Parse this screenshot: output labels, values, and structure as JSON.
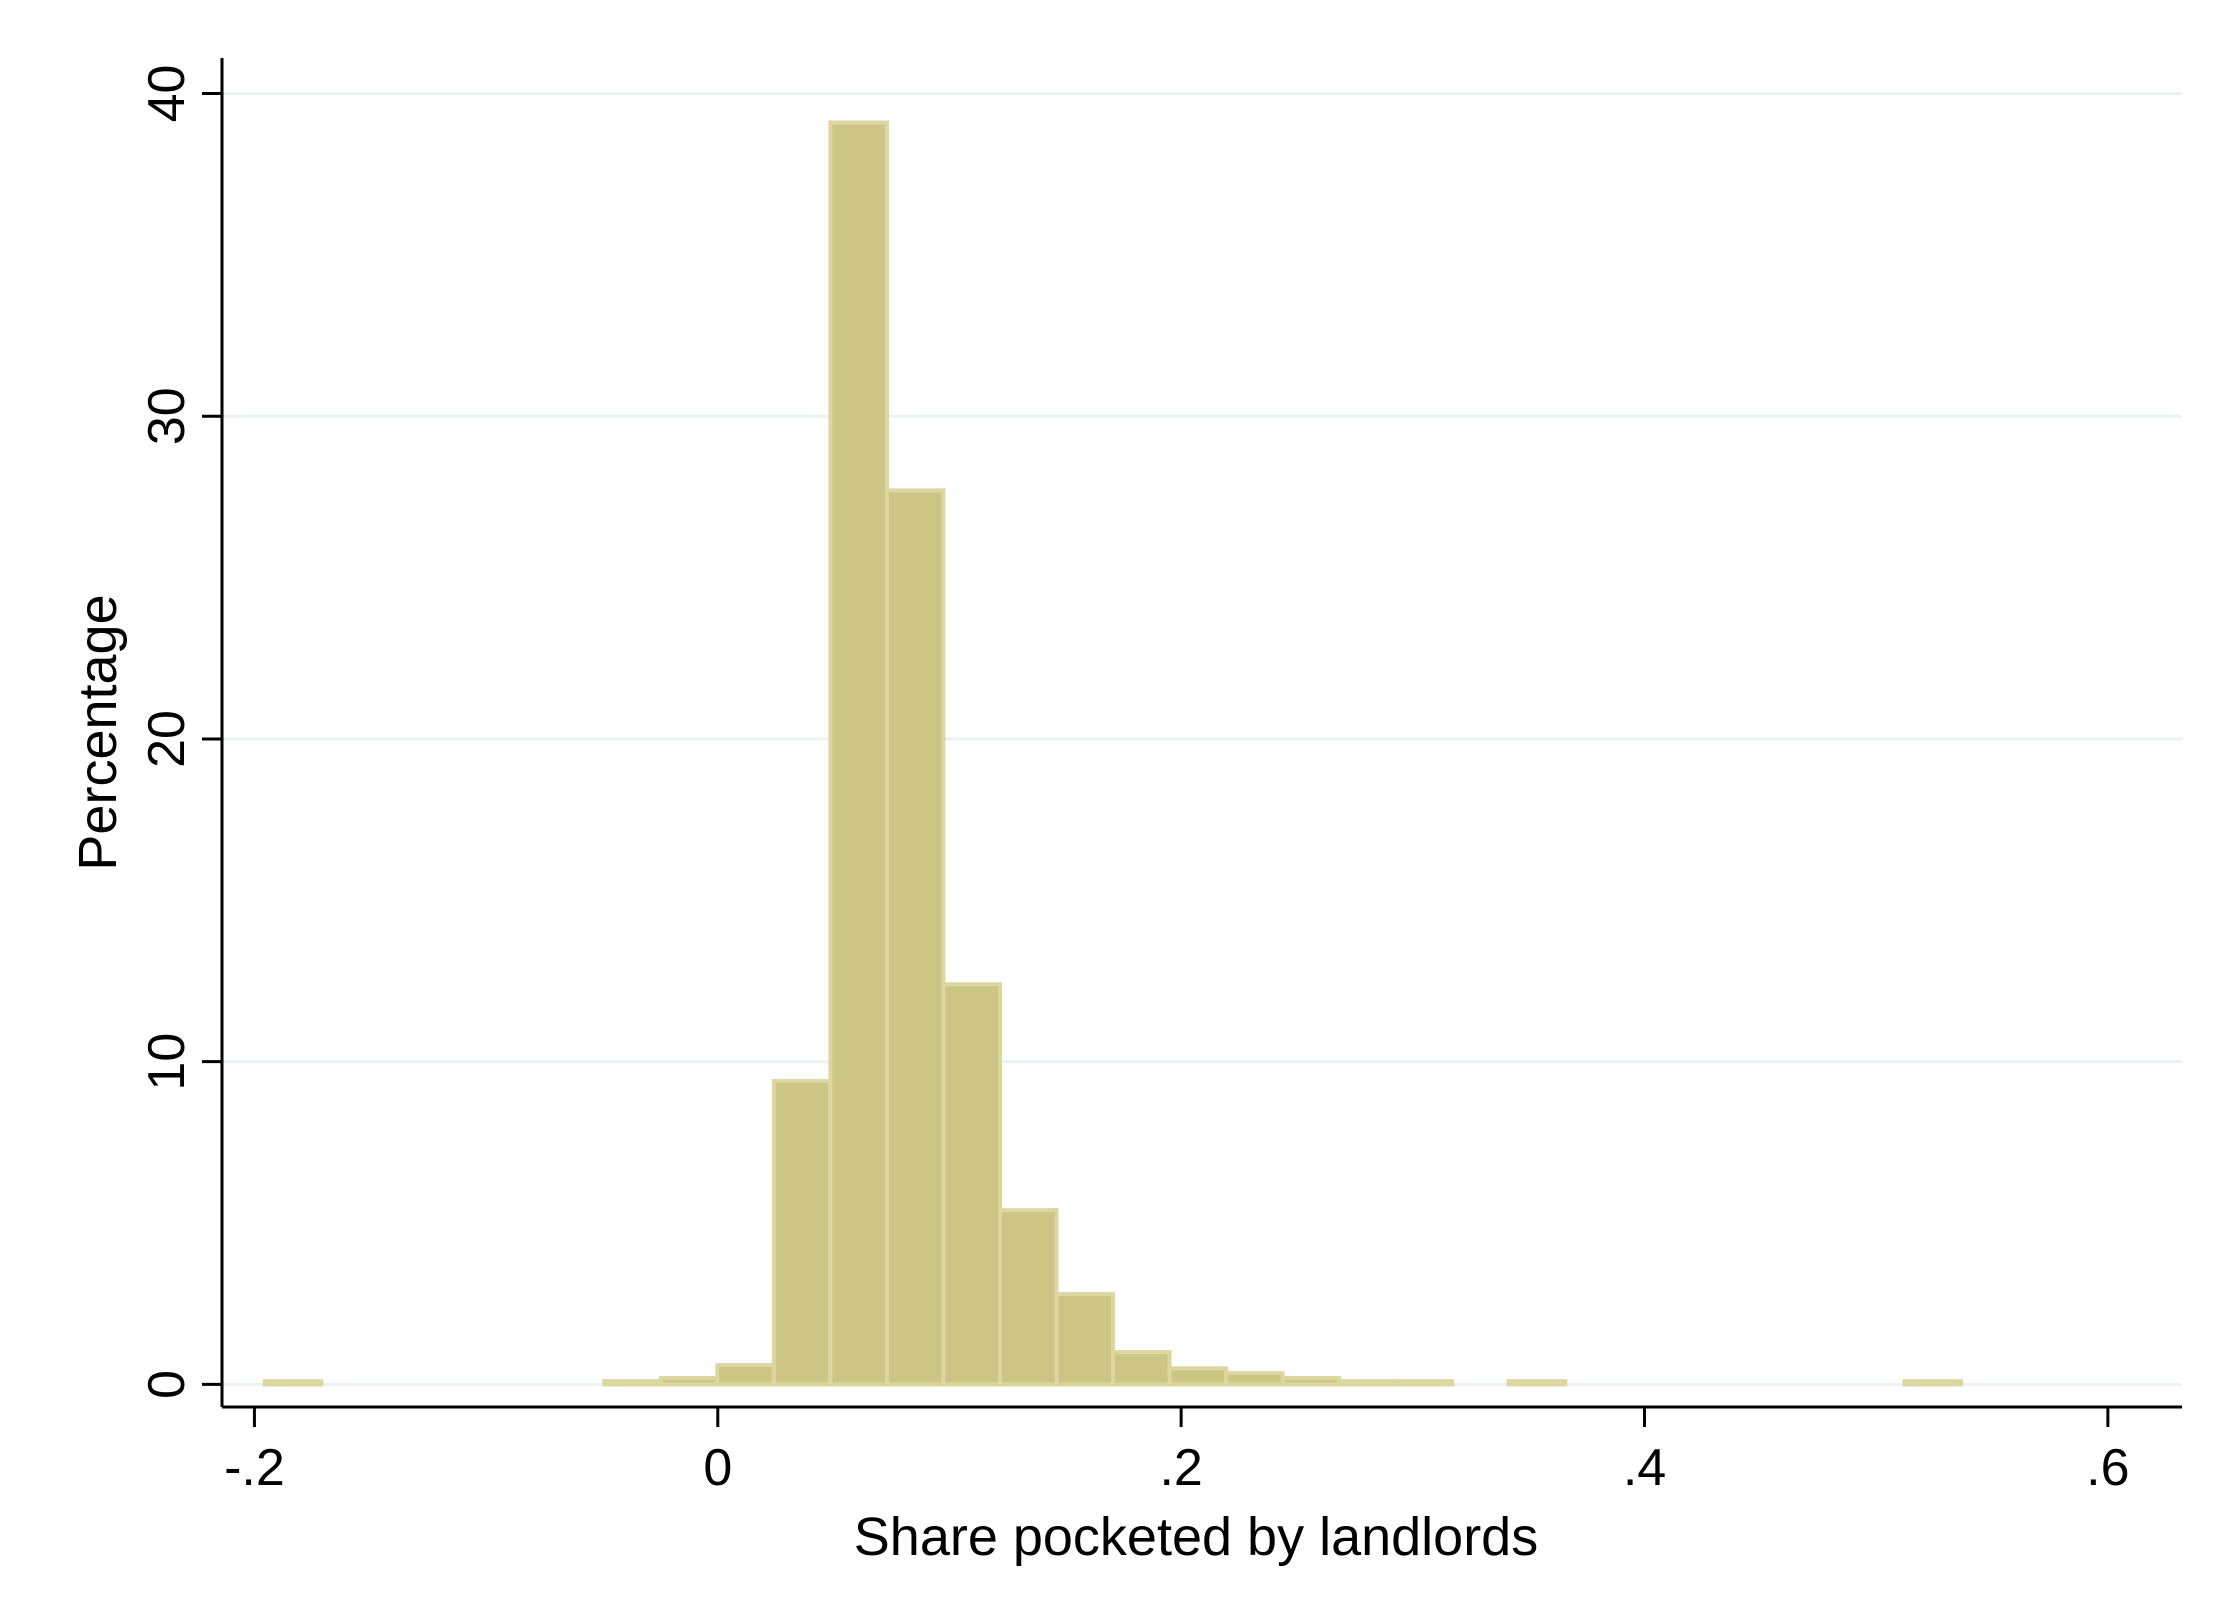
{
  "chart_data": {
    "type": "bar",
    "xlabel": "Share pocketed by landlords",
    "ylabel": "Percentage",
    "xlim": [
      -0.214,
      0.632
    ],
    "ylim": [
      -0.7,
      41.1
    ],
    "xticks": [
      -0.2,
      0,
      0.2,
      0.4,
      0.6
    ],
    "xtick_labels": [
      "-.2",
      "0",
      ".2",
      ".4",
      ".6"
    ],
    "yticks": [
      0,
      10,
      20,
      30,
      40
    ],
    "ytick_labels": [
      "0",
      "10",
      "20",
      "30",
      "40"
    ],
    "grid": true,
    "legend": "none",
    "bin_width": 0.0244,
    "bins": [
      {
        "x0": -0.1955,
        "x1": -0.1711,
        "value": 0.1
      },
      {
        "x0": -0.049,
        "x1": -0.0246,
        "value": 0.1
      },
      {
        "x0": -0.0246,
        "x1": -0.0002,
        "value": 0.2
      },
      {
        "x0": -0.0002,
        "x1": 0.0242,
        "value": 0.6
      },
      {
        "x0": 0.0242,
        "x1": 0.0486,
        "value": 9.4
      },
      {
        "x0": 0.0486,
        "x1": 0.073,
        "value": 39.1
      },
      {
        "x0": 0.073,
        "x1": 0.0974,
        "value": 27.7
      },
      {
        "x0": 0.0974,
        "x1": 0.1218,
        "value": 12.4
      },
      {
        "x0": 0.1218,
        "x1": 0.1462,
        "value": 5.4
      },
      {
        "x0": 0.1462,
        "x1": 0.1706,
        "value": 2.8
      },
      {
        "x0": 0.1706,
        "x1": 0.195,
        "value": 1.0
      },
      {
        "x0": 0.195,
        "x1": 0.2194,
        "value": 0.5
      },
      {
        "x0": 0.2194,
        "x1": 0.2438,
        "value": 0.35
      },
      {
        "x0": 0.2438,
        "x1": 0.2682,
        "value": 0.2
      },
      {
        "x0": 0.2682,
        "x1": 0.2926,
        "value": 0.1
      },
      {
        "x0": 0.2926,
        "x1": 0.317,
        "value": 0.1
      },
      {
        "x0": 0.3414,
        "x1": 0.3658,
        "value": 0.1
      },
      {
        "x0": 0.5122,
        "x1": 0.5366,
        "value": 0.1
      }
    ],
    "colors": {
      "bar_fill": "#CCC584",
      "bar_edge": "#DCD7A0",
      "grid": "#EAF2F3",
      "axis": "#000000"
    }
  }
}
